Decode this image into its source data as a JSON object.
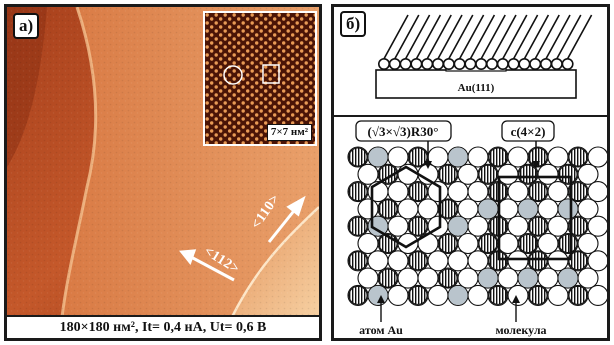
{
  "panel_a": {
    "tag": "а)",
    "inset_label": "7×7 нм²",
    "direction_110": "<110>",
    "direction_112": "<112>",
    "caption": "180×180 нм², It= 0,4 нА, Ut= 0,6 В"
  },
  "panel_b": {
    "tag": "б)",
    "substrate_label": "Au(111)",
    "phase_left_label": "(√3×√3)R30°",
    "phase_right_label": "c(4×2)",
    "atom_label": "атом Au",
    "molecule_label": "молекула"
  },
  "colors": {
    "stm_dark": "#7a2a12",
    "stm_mid": "#c0562a",
    "stm_light": "#f3c79a",
    "molecule_gray": "#b9c4cc",
    "frame": "#1a1a1a"
  }
}
